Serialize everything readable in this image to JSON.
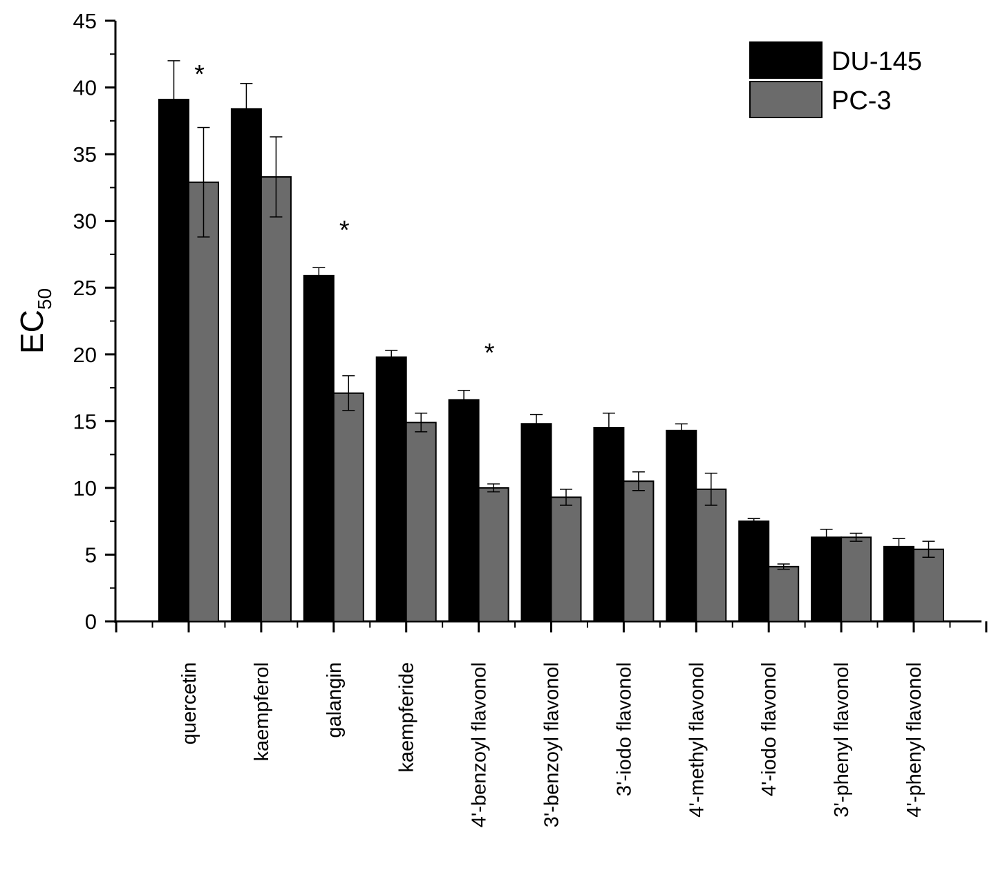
{
  "chart_data": {
    "type": "bar",
    "ylabel_main": "EC",
    "ylabel_sub": "50",
    "ylim": [
      0,
      45
    ],
    "yticks": [
      0,
      5,
      10,
      15,
      20,
      25,
      30,
      35,
      40,
      45
    ],
    "grid": false,
    "legend_position": "top-right",
    "categories": [
      "quercetin",
      "kaempferol",
      "galangin",
      "kaempferide",
      "4'-benzoyl flavonol",
      "3'-benzoyl flavonol",
      "3'-iodo flavonol",
      "4'-methyl flavonol",
      "4'-iodo flavonol",
      "3'-phenyl flavonol",
      "4'-phenyl flavonol"
    ],
    "series": [
      {
        "name": "DU-145",
        "color": "#000000",
        "values": [
          39.1,
          38.4,
          25.9,
          19.8,
          16.6,
          14.8,
          14.5,
          14.3,
          7.5,
          6.3,
          5.6
        ],
        "errors": [
          2.9,
          1.9,
          0.6,
          0.5,
          0.7,
          0.7,
          1.1,
          0.5,
          0.2,
          0.6,
          0.6
        ]
      },
      {
        "name": "PC-3",
        "color": "#6b6b6b",
        "values": [
          32.9,
          33.3,
          17.1,
          14.9,
          10.0,
          9.3,
          10.5,
          9.9,
          4.1,
          6.3,
          5.4
        ],
        "errors": [
          4.1,
          3.0,
          1.3,
          0.7,
          0.3,
          0.6,
          0.7,
          1.2,
          0.2,
          0.3,
          0.6
        ]
      }
    ],
    "significance_markers": [
      "*",
      "*",
      "*"
    ],
    "significance_categories": [
      "quercetin",
      "galangin",
      "4'-benzoyl flavonol"
    ]
  }
}
